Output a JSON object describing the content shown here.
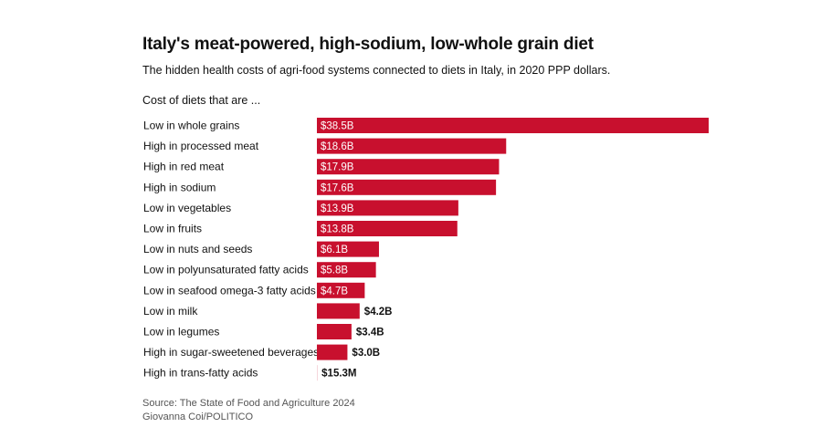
{
  "header": {
    "title": "Italy's meat-powered, high-sodium, low-whole grain diet",
    "subtitle": "The hidden health costs of agri-food systems connected to diets in Italy, in 2020 PPP dollars.",
    "section_label": "Cost of diets that are ..."
  },
  "footer": {
    "source": "Source: The State of Food and Agriculture 2024",
    "credit": "Giovanna Coi/POLITICO"
  },
  "colors": {
    "bar": "#c8102e",
    "label_inside": "#ffffff",
    "label_outside": "#111111"
  },
  "chart_data": {
    "type": "bar",
    "orientation": "horizontal",
    "title": "Italy's meat-powered, high-sodium, low-whole grain diet",
    "xlabel": "",
    "ylabel": "Cost of diets that are ...",
    "unit": "billion 2020 PPP dollars",
    "xlim": [
      0,
      38.5
    ],
    "grid": false,
    "categories": [
      "Low in whole grains",
      "High in processed meat",
      "High in red meat",
      "High in sodium",
      "Low in vegetables",
      "Low in fruits",
      "Low in nuts and seeds",
      "Low in polyunsaturated fatty acids",
      "Low in seafood omega-3 fatty acids",
      "Low in milk",
      "Low in legumes",
      "High in sugar-sweetened beverages",
      "High in trans-fatty acids"
    ],
    "values": [
      38.5,
      18.6,
      17.9,
      17.6,
      13.9,
      13.8,
      6.1,
      5.8,
      4.7,
      4.2,
      3.4,
      3.0,
      0.0153
    ],
    "labels": [
      "$38.5B",
      "$18.6B",
      "$17.9B",
      "$17.6B",
      "$13.9B",
      "$13.8B",
      "$6.1B",
      "$5.8B",
      "$4.7B",
      "$4.2B",
      "$3.4B",
      "$3.0B",
      "$15.3M"
    ]
  }
}
